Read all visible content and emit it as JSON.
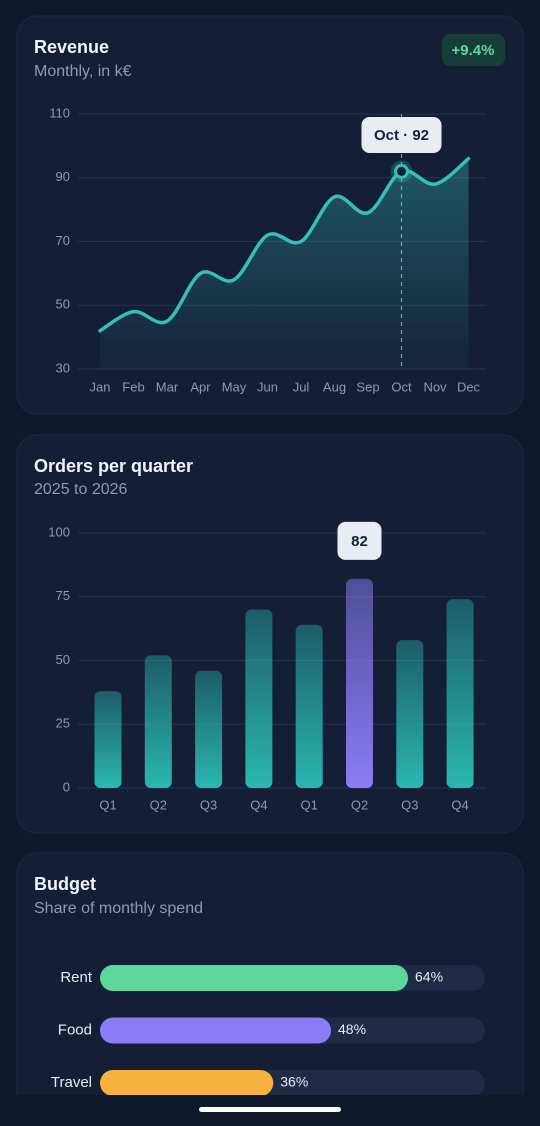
{
  "chart_data": [
    {
      "type": "line",
      "title": "Revenue",
      "subtitle": "Monthly, in k€",
      "badge": "+9.4%",
      "categories": [
        "Jan",
        "Feb",
        "Mar",
        "Apr",
        "May",
        "Jun",
        "Jul",
        "Aug",
        "Sep",
        "Oct",
        "Nov",
        "Dec"
      ],
      "values": [
        42,
        48,
        45,
        60,
        58,
        72,
        70,
        84,
        79,
        92,
        88,
        96
      ],
      "color": "#35c0b5",
      "ylim": [
        30,
        110
      ],
      "yticks": [
        30,
        50,
        70,
        90,
        110
      ],
      "grid": true,
      "highlight": 9,
      "annotation": "Oct · 92"
    },
    {
      "type": "bar",
      "title": "Orders per quarter",
      "subtitle": "2025 to 2026",
      "categories": [
        "Q1",
        "Q2",
        "Q3",
        "Q4",
        "Q1",
        "Q2",
        "Q3",
        "Q4"
      ],
      "values": [
        38,
        52,
        46,
        70,
        64,
        82,
        58,
        74
      ],
      "color": "#2ab7b0",
      "highlight_color": "#8b7cf6",
      "highlight": 5,
      "ylim": [
        0,
        100
      ],
      "yticks": [
        0,
        25,
        50,
        75,
        100
      ],
      "grid": true
    },
    {
      "type": "barh",
      "title": "Budget",
      "subtitle": "Share of monthly spend",
      "categories": [
        "Rent",
        "Food",
        "Travel"
      ],
      "values": [
        64,
        48,
        36
      ],
      "value_labels": [
        "64%",
        "48%",
        "36%"
      ],
      "colors": [
        "#5cd69a",
        "#8b7cf6",
        "#f6b13f"
      ],
      "xlim": [
        0,
        80
      ]
    }
  ]
}
